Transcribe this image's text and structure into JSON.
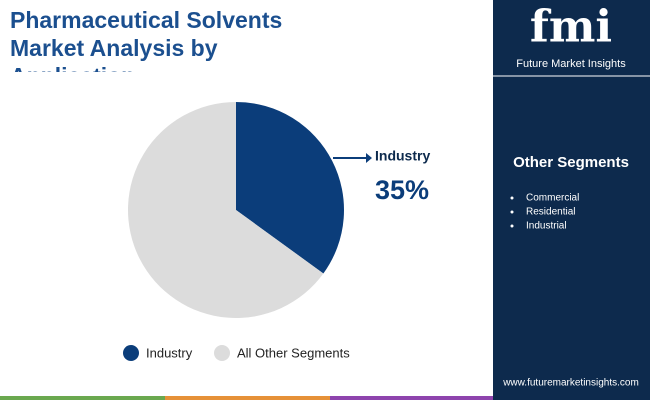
{
  "chart_data": {
    "type": "pie",
    "title": "Pharmaceutical Solvents Market Analysis by Application",
    "categories": [
      "Industry",
      "All Other Segments"
    ],
    "values": [
      35,
      65
    ],
    "value_labels": [
      "35%",
      null
    ],
    "colors": [
      "#0b3d7a",
      "#dcdcdc"
    ]
  },
  "sidebar": {
    "heading": "Other Segments",
    "items": [
      "Commercial",
      "Residential",
      "Industrial"
    ]
  },
  "logo": {
    "mark": "fmi",
    "name": "Future Market Insights"
  },
  "website": "www.futuremarketinsights.com"
}
